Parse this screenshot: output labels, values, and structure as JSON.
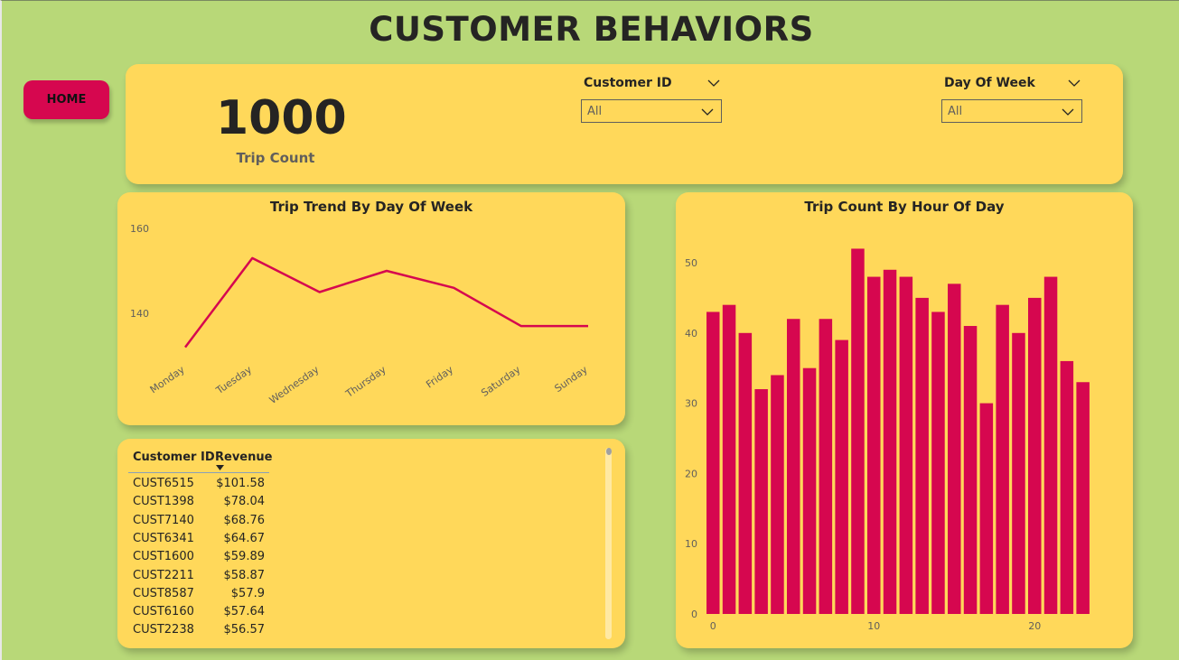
{
  "header": {
    "title": "CUSTOMER BEHAVIORS"
  },
  "nav": {
    "home_label": "HOME"
  },
  "kpi": {
    "value": "1000",
    "label": "Trip Count"
  },
  "slicers": [
    {
      "title": "Customer ID",
      "selected": "All"
    },
    {
      "title": "Day Of Week",
      "selected": "All"
    }
  ],
  "colors": {
    "background": "#b8d878",
    "card": "#ffd85a",
    "accent": "#d6074f"
  },
  "line_chart": {
    "title": "Trip Trend By Day Of Week",
    "y_ticks": [
      "160",
      "140"
    ]
  },
  "bar_chart": {
    "title": "Trip Count By Hour Of Day",
    "y_ticks": [
      "50",
      "40",
      "30",
      "20",
      "10",
      "0"
    ],
    "x_ticks": [
      "0",
      "10",
      "20"
    ]
  },
  "table": {
    "headers": {
      "customer_id": "Customer ID",
      "revenue": "Revenue"
    },
    "rows": [
      {
        "customer_id": "CUST6515",
        "revenue": "$101.58"
      },
      {
        "customer_id": "CUST1398",
        "revenue": "$78.04"
      },
      {
        "customer_id": "CUST7140",
        "revenue": "$68.76"
      },
      {
        "customer_id": "CUST6341",
        "revenue": "$64.67"
      },
      {
        "customer_id": "CUST1600",
        "revenue": "$59.89"
      },
      {
        "customer_id": "CUST2211",
        "revenue": "$58.87"
      },
      {
        "customer_id": "CUST8587",
        "revenue": "$57.9"
      },
      {
        "customer_id": "CUST6160",
        "revenue": "$57.64"
      },
      {
        "customer_id": "CUST2238",
        "revenue": "$56.57"
      }
    ]
  },
  "chart_data": [
    {
      "type": "line",
      "title": "Trip Trend By Day Of Week",
      "categories": [
        "Monday",
        "Tuesday",
        "Wednesday",
        "Thursday",
        "Friday",
        "Saturday",
        "Sunday"
      ],
      "values": [
        132,
        153,
        145,
        150,
        146,
        137,
        137
      ],
      "ylim": [
        130,
        160
      ],
      "color": "#d6074f",
      "grid": false
    },
    {
      "type": "bar",
      "title": "Trip Count By Hour Of Day",
      "x": [
        0,
        1,
        2,
        3,
        4,
        5,
        6,
        7,
        8,
        9,
        10,
        11,
        12,
        13,
        14,
        15,
        16,
        17,
        18,
        19,
        20,
        21,
        22,
        23
      ],
      "values": [
        43,
        44,
        40,
        32,
        34,
        42,
        35,
        42,
        39,
        52,
        48,
        49,
        48,
        45,
        43,
        47,
        41,
        30,
        44,
        40,
        45,
        48,
        36,
        33
      ],
      "ylim": [
        0,
        55
      ],
      "color": "#d6074f",
      "grid": false
    }
  ]
}
